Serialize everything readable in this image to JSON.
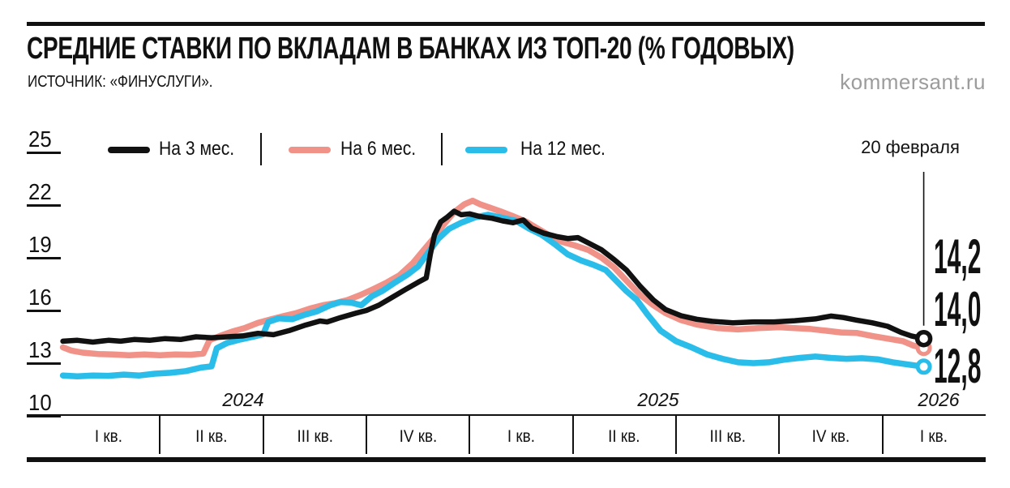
{
  "header": {
    "title": "СРЕДНИЕ СТАВКИ ПО ВКЛАДАМ В БАНКАХ ИЗ ТОП-20 (% ГОДОВЫХ)",
    "source": "ИСТОЧНИК: «ФИНУСЛУГИ».",
    "watermark": "kommersant.ru"
  },
  "legend": [
    {
      "label": "На 3 мес.",
      "color": "#111111"
    },
    {
      "label": "На 6 мес.",
      "color": "#F09288"
    },
    {
      "label": "На 12 мес.",
      "color": "#2BBDE9"
    }
  ],
  "annotation": {
    "date_label": "20 февраля",
    "values": [
      "14,2",
      "14,0",
      "12,8"
    ]
  },
  "chart_data": {
    "type": "line",
    "title": "СРЕДНИЕ СТАВКИ ПО ВКЛАДАМ В БАНКАХ ИЗ ТОП-20 (% ГОДОВЫХ)",
    "source": "«Финуслуги»",
    "ylabel": "% годовых",
    "y_ticks": [
      25,
      22,
      19,
      16,
      13,
      10
    ],
    "ylim": [
      10,
      25
    ],
    "grid": "off",
    "legend_position": "top",
    "x_unit": "quarters since start of 2024",
    "x_quarter_labels": [
      "I кв.",
      "II кв.",
      "III кв.",
      "IV кв.",
      "I кв.",
      "II кв.",
      "III кв.",
      "IV кв.",
      "I кв."
    ],
    "x_year_labels": [
      "2024",
      "2025",
      "2026"
    ],
    "end_point_label": "20 февраля",
    "end_values_displayed": [
      "14,2",
      "14,0",
      "12,8"
    ],
    "series": [
      {
        "name": "На 3 мес.",
        "color": "#111111",
        "end_label": "14,2",
        "points": [
          [
            0.06,
            14.25
          ],
          [
            0.2,
            14.3
          ],
          [
            0.35,
            14.2
          ],
          [
            0.5,
            14.3
          ],
          [
            0.62,
            14.25
          ],
          [
            0.75,
            14.35
          ],
          [
            0.9,
            14.3
          ],
          [
            1.05,
            14.4
          ],
          [
            1.2,
            14.35
          ],
          [
            1.35,
            14.5
          ],
          [
            1.5,
            14.45
          ],
          [
            1.65,
            14.5
          ],
          [
            1.8,
            14.55
          ],
          [
            1.95,
            14.7
          ],
          [
            2.1,
            14.62
          ],
          [
            2.25,
            14.85
          ],
          [
            2.4,
            15.15
          ],
          [
            2.55,
            15.4
          ],
          [
            2.62,
            15.35
          ],
          [
            2.75,
            15.6
          ],
          [
            2.9,
            15.85
          ],
          [
            3.0,
            16.0
          ],
          [
            3.12,
            16.3
          ],
          [
            3.25,
            16.75
          ],
          [
            3.38,
            17.2
          ],
          [
            3.5,
            17.6
          ],
          [
            3.58,
            17.85
          ],
          [
            3.62,
            19.2
          ],
          [
            3.66,
            20.3
          ],
          [
            3.72,
            21.05
          ],
          [
            3.78,
            21.3
          ],
          [
            3.85,
            21.65
          ],
          [
            3.92,
            21.45
          ],
          [
            4.0,
            21.5
          ],
          [
            4.1,
            21.35
          ],
          [
            4.22,
            21.25
          ],
          [
            4.32,
            21.1
          ],
          [
            4.42,
            21.0
          ],
          [
            4.52,
            21.15
          ],
          [
            4.6,
            20.7
          ],
          [
            4.72,
            20.4
          ],
          [
            4.85,
            20.2
          ],
          [
            4.95,
            20.1
          ],
          [
            5.05,
            20.15
          ],
          [
            5.15,
            19.85
          ],
          [
            5.28,
            19.45
          ],
          [
            5.4,
            18.9
          ],
          [
            5.52,
            18.3
          ],
          [
            5.65,
            17.4
          ],
          [
            5.78,
            16.6
          ],
          [
            5.9,
            16.05
          ],
          [
            6.05,
            15.7
          ],
          [
            6.2,
            15.5
          ],
          [
            6.35,
            15.38
          ],
          [
            6.55,
            15.3
          ],
          [
            6.75,
            15.35
          ],
          [
            6.95,
            15.35
          ],
          [
            7.15,
            15.42
          ],
          [
            7.35,
            15.52
          ],
          [
            7.5,
            15.68
          ],
          [
            7.62,
            15.6
          ],
          [
            7.75,
            15.45
          ],
          [
            7.9,
            15.3
          ],
          [
            8.05,
            15.1
          ],
          [
            8.18,
            14.75
          ],
          [
            8.28,
            14.55
          ],
          [
            8.4,
            14.4
          ]
        ]
      },
      {
        "name": "На 6 мес.",
        "color": "#F09288",
        "end_label": "14,0",
        "points": [
          [
            0.06,
            13.9
          ],
          [
            0.14,
            13.72
          ],
          [
            0.25,
            13.6
          ],
          [
            0.4,
            13.52
          ],
          [
            0.55,
            13.5
          ],
          [
            0.7,
            13.45
          ],
          [
            0.85,
            13.5
          ],
          [
            1.0,
            13.45
          ],
          [
            1.15,
            13.5
          ],
          [
            1.3,
            13.48
          ],
          [
            1.42,
            13.55
          ],
          [
            1.48,
            14.3
          ],
          [
            1.58,
            14.55
          ],
          [
            1.7,
            14.8
          ],
          [
            1.82,
            15.0
          ],
          [
            1.95,
            15.3
          ],
          [
            2.08,
            15.5
          ],
          [
            2.2,
            15.68
          ],
          [
            2.32,
            15.85
          ],
          [
            2.45,
            16.1
          ],
          [
            2.58,
            16.3
          ],
          [
            2.7,
            16.42
          ],
          [
            2.82,
            16.6
          ],
          [
            2.95,
            16.9
          ],
          [
            3.08,
            17.25
          ],
          [
            3.2,
            17.6
          ],
          [
            3.32,
            18.0
          ],
          [
            3.45,
            18.7
          ],
          [
            3.55,
            19.4
          ],
          [
            3.65,
            20.1
          ],
          [
            3.75,
            20.9
          ],
          [
            3.85,
            21.6
          ],
          [
            3.95,
            22.05
          ],
          [
            4.03,
            22.25
          ],
          [
            4.1,
            22.05
          ],
          [
            4.2,
            21.85
          ],
          [
            4.32,
            21.6
          ],
          [
            4.45,
            21.3
          ],
          [
            4.55,
            21.05
          ],
          [
            4.65,
            20.7
          ],
          [
            4.78,
            20.25
          ],
          [
            4.9,
            19.9
          ],
          [
            5.02,
            19.7
          ],
          [
            5.15,
            19.45
          ],
          [
            5.28,
            19.0
          ],
          [
            5.4,
            18.45
          ],
          [
            5.52,
            17.7
          ],
          [
            5.65,
            16.9
          ],
          [
            5.78,
            16.3
          ],
          [
            5.9,
            15.85
          ],
          [
            6.05,
            15.45
          ],
          [
            6.2,
            15.2
          ],
          [
            6.4,
            15.0
          ],
          [
            6.6,
            14.92
          ],
          [
            6.8,
            15.0
          ],
          [
            7.0,
            15.05
          ],
          [
            7.15,
            15.0
          ],
          [
            7.3,
            14.95
          ],
          [
            7.45,
            14.85
          ],
          [
            7.6,
            14.75
          ],
          [
            7.75,
            14.72
          ],
          [
            7.9,
            14.55
          ],
          [
            8.05,
            14.4
          ],
          [
            8.2,
            14.25
          ],
          [
            8.3,
            14.0
          ],
          [
            8.4,
            13.87
          ]
        ]
      },
      {
        "name": "На 12 мес.",
        "color": "#2BBDE9",
        "end_label": "12,8",
        "points": [
          [
            0.06,
            12.3
          ],
          [
            0.2,
            12.25
          ],
          [
            0.35,
            12.3
          ],
          [
            0.5,
            12.28
          ],
          [
            0.65,
            12.35
          ],
          [
            0.8,
            12.3
          ],
          [
            0.95,
            12.4
          ],
          [
            1.1,
            12.45
          ],
          [
            1.25,
            12.55
          ],
          [
            1.4,
            12.75
          ],
          [
            1.5,
            12.82
          ],
          [
            1.55,
            13.85
          ],
          [
            1.65,
            14.15
          ],
          [
            1.78,
            14.35
          ],
          [
            1.9,
            14.5
          ],
          [
            2.0,
            14.65
          ],
          [
            2.05,
            15.35
          ],
          [
            2.15,
            15.55
          ],
          [
            2.28,
            15.5
          ],
          [
            2.4,
            15.75
          ],
          [
            2.52,
            15.95
          ],
          [
            2.65,
            16.3
          ],
          [
            2.75,
            16.48
          ],
          [
            2.85,
            16.45
          ],
          [
            2.95,
            16.3
          ],
          [
            3.05,
            16.8
          ],
          [
            3.15,
            17.1
          ],
          [
            3.28,
            17.6
          ],
          [
            3.4,
            18.05
          ],
          [
            3.5,
            18.5
          ],
          [
            3.6,
            19.3
          ],
          [
            3.7,
            20.1
          ],
          [
            3.8,
            20.65
          ],
          [
            3.92,
            21.0
          ],
          [
            4.05,
            21.3
          ],
          [
            4.18,
            21.45
          ],
          [
            4.3,
            21.3
          ],
          [
            4.45,
            21.1
          ],
          [
            4.58,
            20.65
          ],
          [
            4.7,
            20.3
          ],
          [
            4.82,
            19.8
          ],
          [
            4.95,
            19.2
          ],
          [
            5.08,
            18.85
          ],
          [
            5.2,
            18.6
          ],
          [
            5.32,
            18.3
          ],
          [
            5.42,
            17.7
          ],
          [
            5.52,
            17.1
          ],
          [
            5.62,
            16.6
          ],
          [
            5.72,
            15.8
          ],
          [
            5.85,
            14.85
          ],
          [
            6.0,
            14.25
          ],
          [
            6.15,
            13.9
          ],
          [
            6.3,
            13.5
          ],
          [
            6.45,
            13.25
          ],
          [
            6.6,
            13.05
          ],
          [
            6.75,
            13.0
          ],
          [
            6.9,
            13.05
          ],
          [
            7.05,
            13.2
          ],
          [
            7.2,
            13.3
          ],
          [
            7.35,
            13.38
          ],
          [
            7.5,
            13.3
          ],
          [
            7.65,
            13.25
          ],
          [
            7.8,
            13.28
          ],
          [
            7.95,
            13.22
          ],
          [
            8.1,
            13.05
          ],
          [
            8.25,
            12.92
          ],
          [
            8.4,
            12.8
          ]
        ]
      }
    ]
  }
}
